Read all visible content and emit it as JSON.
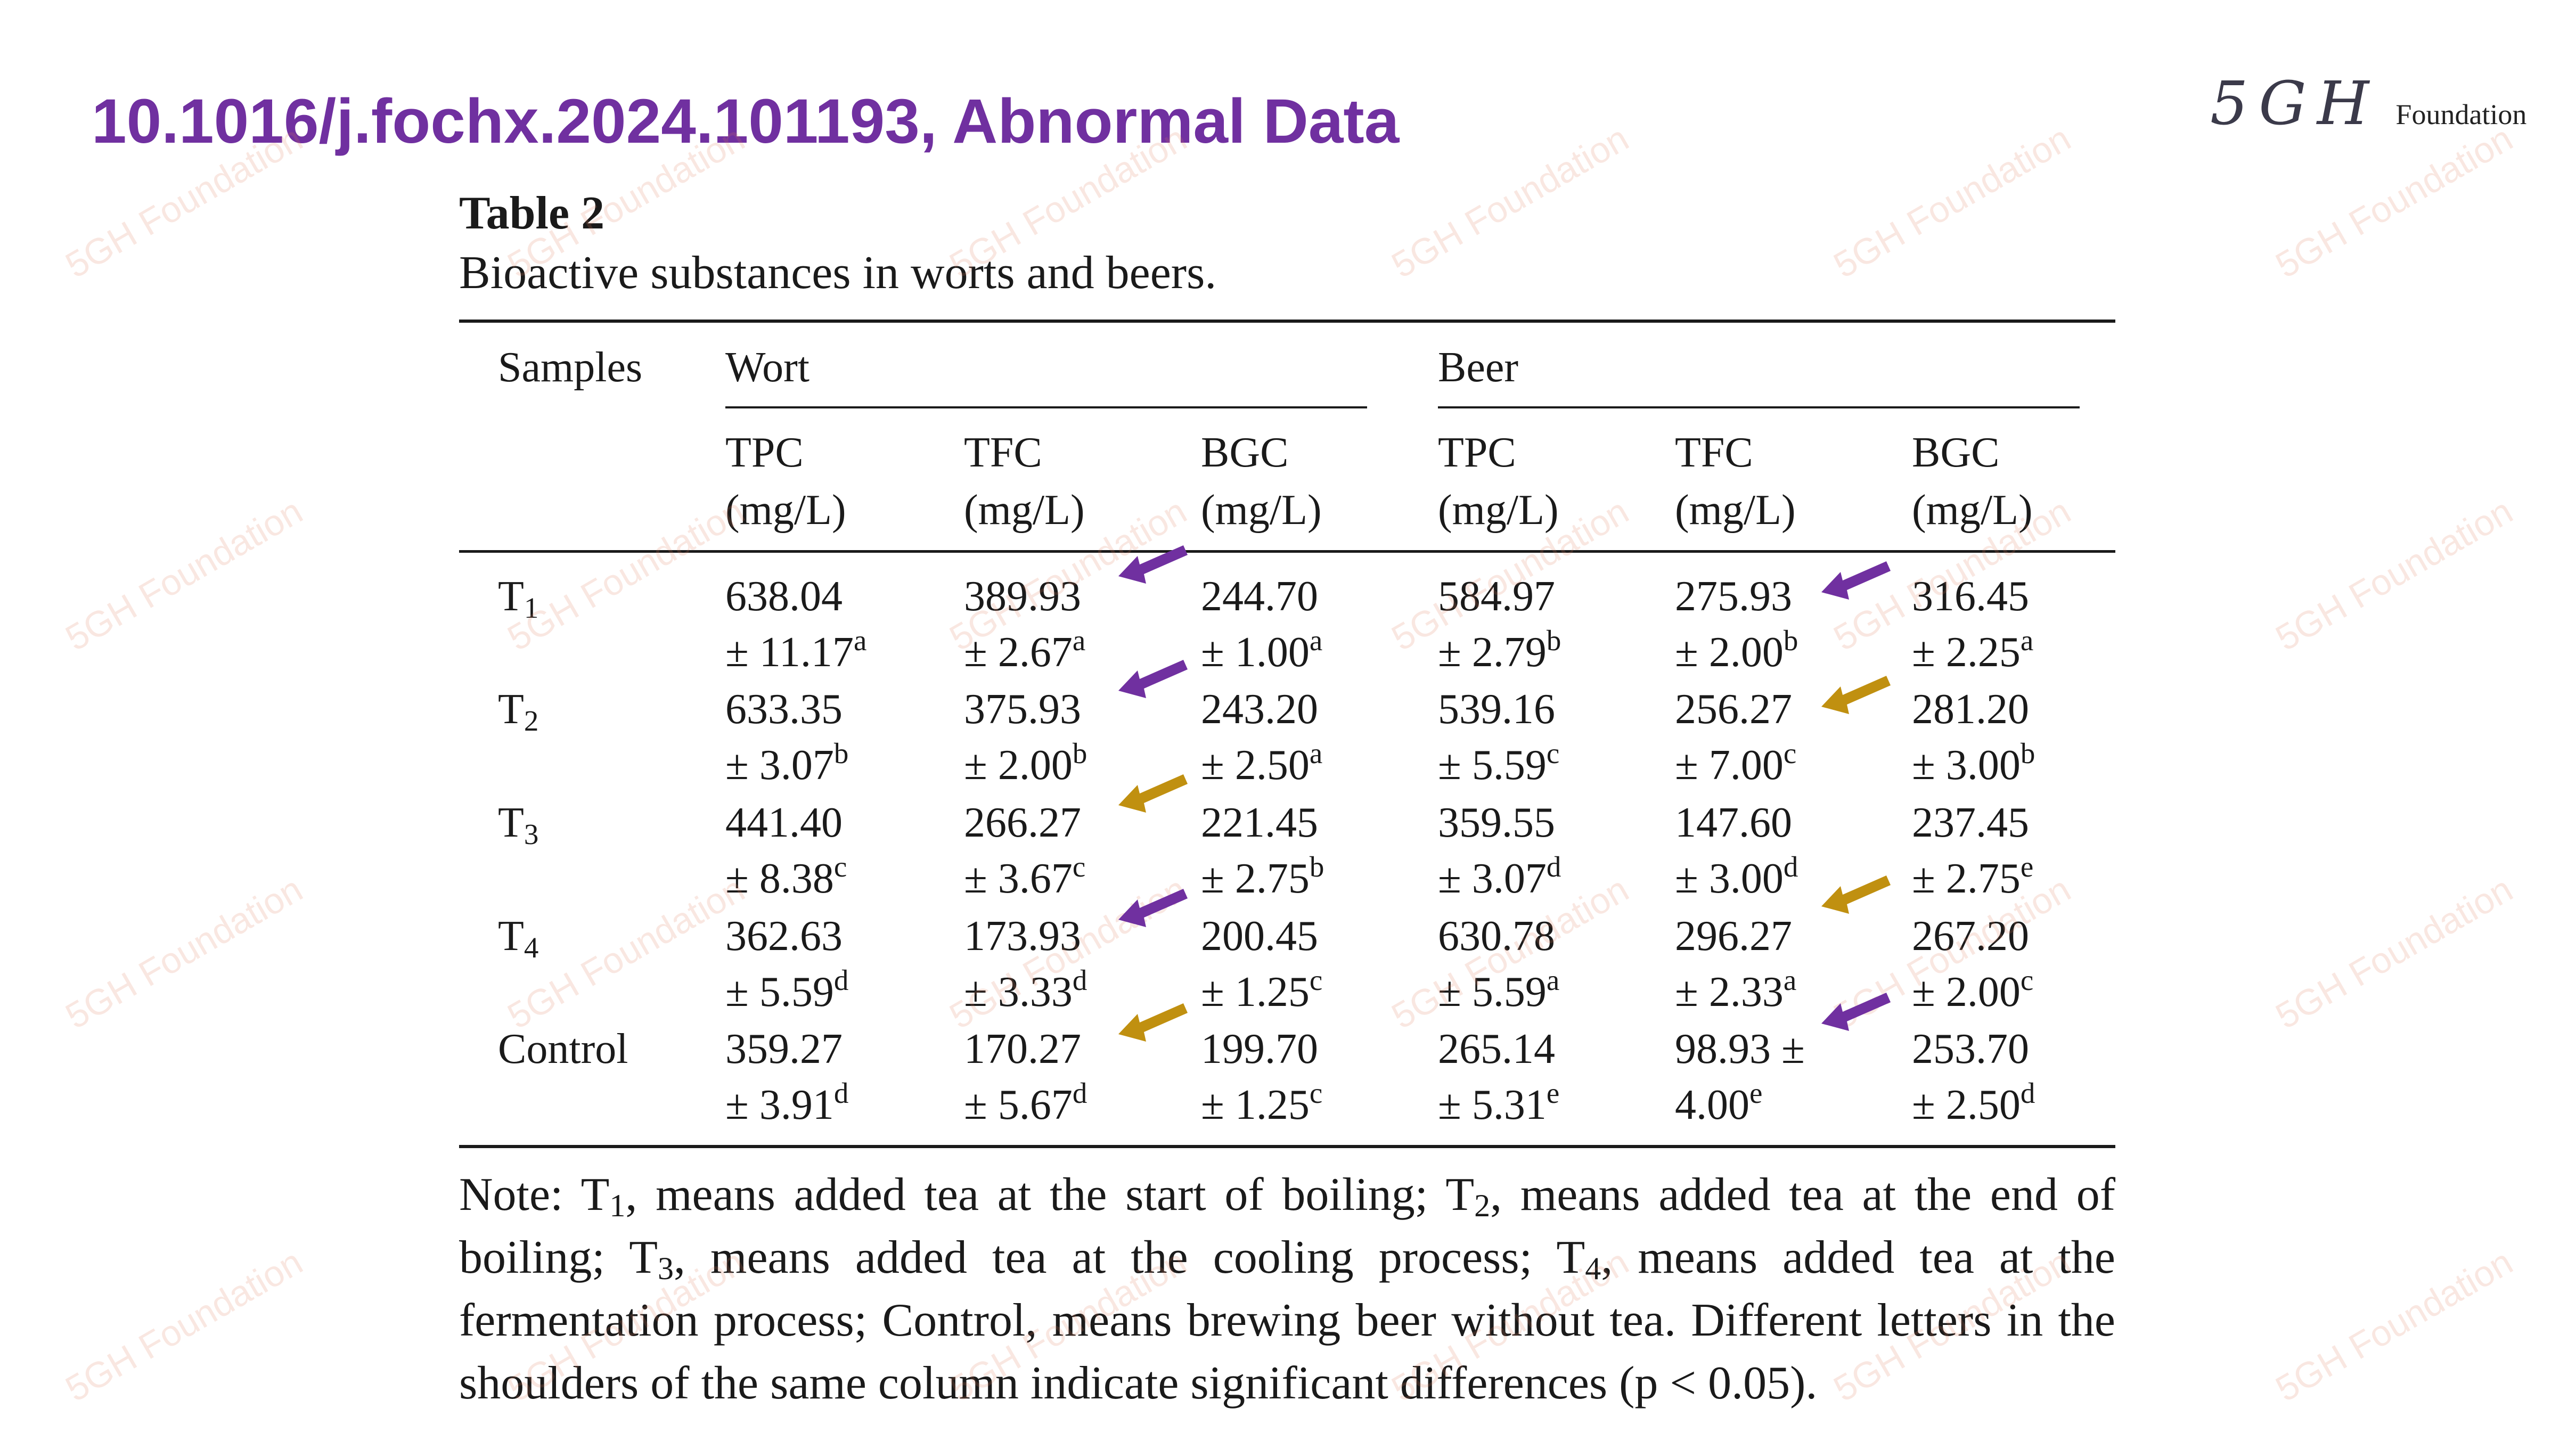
{
  "header": {
    "title": "10.1016/j.fochx.2024.101193, Abnormal Data",
    "logo_mark": "5GH",
    "logo_word": "Foundation"
  },
  "watermark_text": "5GH Foundation",
  "table": {
    "caption": "Table 2",
    "subtitle": "Bioactive substances in worts and beers.",
    "col_samples": "Samples",
    "group_wort": "Wort",
    "group_beer": "Beer",
    "metrics": [
      {
        "name": "TPC",
        "unit": "(mg/L)"
      },
      {
        "name": "TFC",
        "unit": "(mg/L)"
      },
      {
        "name": "BGC",
        "unit": "(mg/L)"
      },
      {
        "name": "TPC",
        "unit": "(mg/L)"
      },
      {
        "name": "TFC",
        "unit": "(mg/L)"
      },
      {
        "name": "BGC",
        "unit": "(mg/L)"
      }
    ],
    "rows": [
      {
        "label": "T",
        "label_sub": "1",
        "cells": [
          {
            "mean": "638.04",
            "sd": "± 11.17",
            "sig": "a"
          },
          {
            "mean": "389.93",
            "sd": "± 2.67",
            "sig": "a"
          },
          {
            "mean": "244.70",
            "sd": "± 1.00",
            "sig": "a"
          },
          {
            "mean": "584.97",
            "sd": "± 2.79",
            "sig": "b"
          },
          {
            "mean": "275.93",
            "sd": "± 2.00",
            "sig": "b"
          },
          {
            "mean": "316.45",
            "sd": "± 2.25",
            "sig": "a"
          }
        ]
      },
      {
        "label": "T",
        "label_sub": "2",
        "cells": [
          {
            "mean": "633.35",
            "sd": "± 3.07",
            "sig": "b"
          },
          {
            "mean": "375.93",
            "sd": "± 2.00",
            "sig": "b"
          },
          {
            "mean": "243.20",
            "sd": "± 2.50",
            "sig": "a"
          },
          {
            "mean": "539.16",
            "sd": "± 5.59",
            "sig": "c"
          },
          {
            "mean": "256.27",
            "sd": "± 7.00",
            "sig": "c"
          },
          {
            "mean": "281.20",
            "sd": "± 3.00",
            "sig": "b"
          }
        ]
      },
      {
        "label": "T",
        "label_sub": "3",
        "cells": [
          {
            "mean": "441.40",
            "sd": "± 8.38",
            "sig": "c"
          },
          {
            "mean": "266.27",
            "sd": "± 3.67",
            "sig": "c"
          },
          {
            "mean": "221.45",
            "sd": "± 2.75",
            "sig": "b"
          },
          {
            "mean": "359.55",
            "sd": "± 3.07",
            "sig": "d"
          },
          {
            "mean": "147.60",
            "sd": "± 3.00",
            "sig": "d"
          },
          {
            "mean": "237.45",
            "sd": "± 2.75",
            "sig": "e"
          }
        ]
      },
      {
        "label": "T",
        "label_sub": "4",
        "cells": [
          {
            "mean": "362.63",
            "sd": "± 5.59",
            "sig": "d"
          },
          {
            "mean": "173.93",
            "sd": "± 3.33",
            "sig": "d"
          },
          {
            "mean": "200.45",
            "sd": "± 1.25",
            "sig": "c"
          },
          {
            "mean": "630.78",
            "sd": "± 5.59",
            "sig": "a"
          },
          {
            "mean": "296.27",
            "sd": "± 2.33",
            "sig": "a"
          },
          {
            "mean": "267.20",
            "sd": "± 2.00",
            "sig": "c"
          }
        ]
      },
      {
        "label": "Control",
        "label_sub": "",
        "cells": [
          {
            "mean": "359.27",
            "sd": "± 3.91",
            "sig": "d"
          },
          {
            "mean": "170.27",
            "sd": "± 5.67",
            "sig": "d"
          },
          {
            "mean": "199.70",
            "sd": "± 1.25",
            "sig": "c"
          },
          {
            "mean": "265.14",
            "sd": "± 5.31",
            "sig": "e"
          },
          {
            "mean": "98.93 ±",
            "sd": "4.00",
            "sig": "e"
          },
          {
            "mean": "253.70",
            "sd": "± 2.50",
            "sig": "d"
          }
        ]
      }
    ],
    "note": [
      {
        "t": "Note: T"
      },
      {
        "sub": "1"
      },
      {
        "t": ", means added tea at the start of boiling; T"
      },
      {
        "sub": "2"
      },
      {
        "t": ", means added tea at the end of boiling; T"
      },
      {
        "sub": "3"
      },
      {
        "t": ", means added tea at the cooling process; T"
      },
      {
        "sub": "4"
      },
      {
        "t": ", means added tea at the fermentation process; Control, means brewing beer without tea. Different letters in the shoulders of the same column indicate significant differences (p < 0.05)."
      }
    ]
  },
  "annotations": {
    "colors": {
      "purple": "#7030a0",
      "gold": "#c09010"
    },
    "arrows": [
      {
        "name": "arrow-t1-wort-tfc",
        "color": "purple"
      },
      {
        "name": "arrow-t2-wort-tfc",
        "color": "purple"
      },
      {
        "name": "arrow-t3-wort-tfc",
        "color": "gold"
      },
      {
        "name": "arrow-t4-wort-tfc",
        "color": "purple"
      },
      {
        "name": "arrow-control-wort-tfc",
        "color": "gold"
      },
      {
        "name": "arrow-t1-beer-tfc",
        "color": "purple"
      },
      {
        "name": "arrow-t2-beer-tfc",
        "color": "gold"
      },
      {
        "name": "arrow-t3-beer-tfc",
        "color": "gold"
      },
      {
        "name": "arrow-t4-beer-tfc",
        "color": "purple"
      }
    ]
  }
}
